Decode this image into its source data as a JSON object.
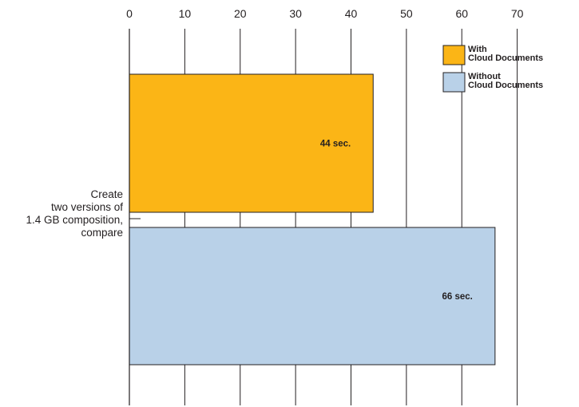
{
  "chart_data": {
    "type": "bar",
    "orientation": "horizontal",
    "categories": [
      "Create two versions of 1.4 GB composition, compare"
    ],
    "category_label_lines": [
      "Create",
      "two versions of",
      "1.4 GB composition,",
      "compare"
    ],
    "series": [
      {
        "name": "With Cloud Documents",
        "name_lines": [
          "With",
          "Cloud Documents"
        ],
        "values": [
          44
        ],
        "value_labels": [
          "44 sec."
        ],
        "color": "#fbb516"
      },
      {
        "name": "Without Cloud Documents",
        "name_lines": [
          "Without",
          "Cloud Documents"
        ],
        "values": [
          66
        ],
        "value_labels": [
          "66 sec."
        ],
        "color": "#b9d1e8"
      }
    ],
    "xlim": [
      0,
      80
    ],
    "xticks": [
      0,
      10,
      20,
      30,
      40,
      50,
      60,
      70
    ],
    "x_axis_position": "top",
    "grid": true,
    "legend_position": "top-right",
    "title": "",
    "xlabel": "",
    "ylabel": ""
  }
}
